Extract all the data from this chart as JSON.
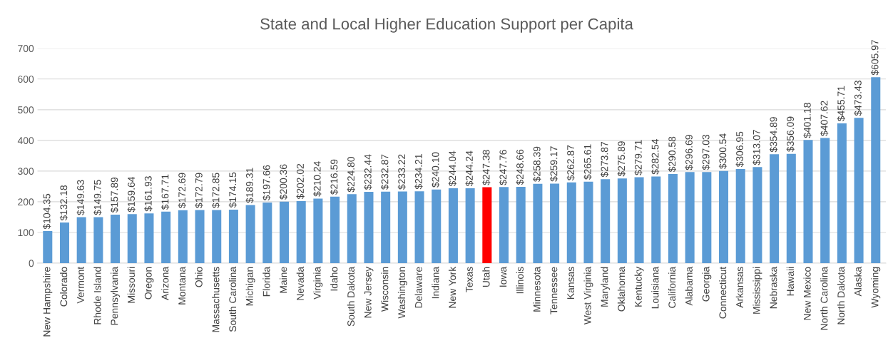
{
  "chart_data": {
    "type": "bar",
    "title": "State and Local Higher Education Support per Capita",
    "categories": [
      "New Hampshire",
      "Colorado",
      "Vermont",
      "Rhode Island",
      "Pennsylvania",
      "Missouri",
      "Oregon",
      "Arizona",
      "Montana",
      "Ohio",
      "Massachusetts",
      "South Carolina",
      "Michigan",
      "Florida",
      "Maine",
      "Nevada",
      "Virginia",
      "Idaho",
      "South Dakota",
      "New Jersey",
      "Wisconsin",
      "Washington",
      "Delaware",
      "Indiana",
      "New York",
      "Texas",
      "Utah",
      "Iowa",
      "Illinois",
      "Minnesota",
      "Tennessee",
      "Kansas",
      "West Virginia",
      "Maryland",
      "Oklahoma",
      "Kentucky",
      "Louisiana",
      "California",
      "Alabama",
      "Georgia",
      "Connecticut",
      "Arkansas",
      "Mississippi",
      "Nebraska",
      "Hawaii",
      "New Mexico",
      "North Carolina",
      "North Dakota",
      "Alaska",
      "Wyoming"
    ],
    "values": [
      104.35,
      132.18,
      149.63,
      149.75,
      157.89,
      159.64,
      161.93,
      167.71,
      172.69,
      172.79,
      172.85,
      174.15,
      189.31,
      197.66,
      200.36,
      202.02,
      210.24,
      216.59,
      224.8,
      232.44,
      232.87,
      233.22,
      234.21,
      240.1,
      244.04,
      244.24,
      247.38,
      247.76,
      248.66,
      258.39,
      259.17,
      262.87,
      265.61,
      273.87,
      275.89,
      279.71,
      282.54,
      290.58,
      296.69,
      297.03,
      300.54,
      306.95,
      313.07,
      354.89,
      356.09,
      401.18,
      407.62,
      455.71,
      473.43,
      605.97
    ],
    "value_labels": [
      "$104.35",
      "$132.18",
      "$149.63",
      "$149.75",
      "$157.89",
      "$159.64",
      "$161.93",
      "$167.71",
      "$172.69",
      "$172.79",
      "$172.85",
      "$174.15",
      "$189.31",
      "$197.66",
      "$200.36",
      "$202.02",
      "$210.24",
      "$216.59",
      "$224.80",
      "$232.44",
      "$232.87",
      "$233.22",
      "$234.21",
      "$240.10",
      "$244.04",
      "$244.24",
      "$247.38",
      "$247.76",
      "$248.66",
      "$258.39",
      "$259.17",
      "$262.87",
      "$265.61",
      "$273.87",
      "$275.89",
      "$279.71",
      "$282.54",
      "$290.58",
      "$296.69",
      "$297.03",
      "$300.54",
      "$306.95",
      "$313.07",
      "$354.89",
      "$356.09",
      "$401.18",
      "$407.62",
      "$455.71",
      "$473.43",
      "$605.97"
    ],
    "colors": [
      "#5b9bd5",
      "#5b9bd5",
      "#5b9bd5",
      "#5b9bd5",
      "#5b9bd5",
      "#5b9bd5",
      "#5b9bd5",
      "#5b9bd5",
      "#5b9bd5",
      "#5b9bd5",
      "#5b9bd5",
      "#5b9bd5",
      "#5b9bd5",
      "#5b9bd5",
      "#5b9bd5",
      "#5b9bd5",
      "#5b9bd5",
      "#5b9bd5",
      "#5b9bd5",
      "#5b9bd5",
      "#5b9bd5",
      "#5b9bd5",
      "#5b9bd5",
      "#5b9bd5",
      "#5b9bd5",
      "#5b9bd5",
      "#ff0000",
      "#5b9bd5",
      "#5b9bd5",
      "#5b9bd5",
      "#5b9bd5",
      "#5b9bd5",
      "#5b9bd5",
      "#5b9bd5",
      "#5b9bd5",
      "#5b9bd5",
      "#5b9bd5",
      "#5b9bd5",
      "#5b9bd5",
      "#5b9bd5",
      "#5b9bd5",
      "#5b9bd5",
      "#5b9bd5",
      "#5b9bd5",
      "#5b9bd5",
      "#5b9bd5",
      "#5b9bd5",
      "#5b9bd5",
      "#5b9bd5",
      "#5b9bd5"
    ],
    "ylim": [
      0,
      700
    ],
    "yticks": [
      0,
      100,
      200,
      300,
      400,
      500,
      600,
      700
    ],
    "grid": "y"
  }
}
